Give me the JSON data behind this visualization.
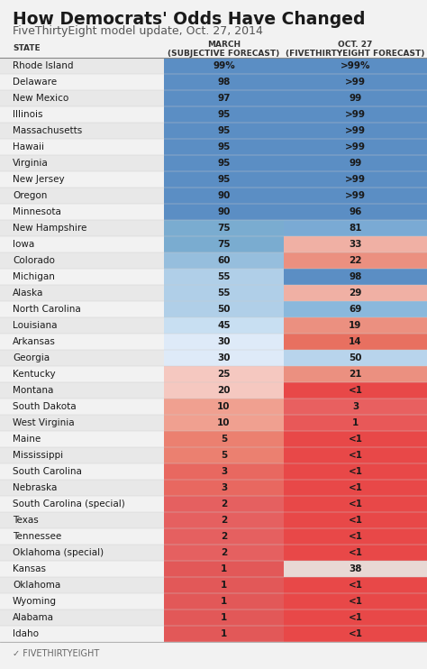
{
  "title": "How Democrats' Odds Have Changed",
  "subtitle": "FiveThirtyEight model update, Oct. 27, 2014",
  "states": [
    "Rhode Island",
    "Delaware",
    "New Mexico",
    "Illinois",
    "Massachusetts",
    "Hawaii",
    "Virginia",
    "New Jersey",
    "Oregon",
    "Minnesota",
    "New Hampshire",
    "Iowa",
    "Colorado",
    "Michigan",
    "Alaska",
    "North Carolina",
    "Louisiana",
    "Arkansas",
    "Georgia",
    "Kentucky",
    "Montana",
    "South Dakota",
    "West Virginia",
    "Maine",
    "Mississippi",
    "South Carolina",
    "Nebraska",
    "South Carolina (special)",
    "Texas",
    "Tennessee",
    "Oklahoma (special)",
    "Kansas",
    "Oklahoma",
    "Wyoming",
    "Alabama",
    "Idaho"
  ],
  "march": [
    99,
    98,
    97,
    95,
    95,
    95,
    95,
    95,
    90,
    90,
    75,
    75,
    60,
    55,
    55,
    50,
    45,
    30,
    30,
    25,
    20,
    10,
    10,
    5,
    5,
    3,
    3,
    2,
    2,
    2,
    2,
    1,
    1,
    1,
    1,
    1
  ],
  "oct": [
    99,
    99,
    99,
    99,
    99,
    99,
    99,
    99,
    99,
    96,
    81,
    33,
    22,
    98,
    29,
    69,
    19,
    14,
    50,
    21,
    0.5,
    3,
    1,
    0.5,
    0.5,
    0.5,
    0.5,
    0.5,
    0.5,
    0.5,
    0.5,
    38,
    0.5,
    0.5,
    0.5,
    0.5
  ],
  "march_labels": [
    "99%",
    "98",
    "97",
    "95",
    "95",
    "95",
    "95",
    "95",
    "90",
    "90",
    "75",
    "75",
    "60",
    "55",
    "55",
    "50",
    "45",
    "30",
    "30",
    "25",
    "20",
    "10",
    "10",
    "5",
    "5",
    "3",
    "3",
    "2",
    "2",
    "2",
    "2",
    "1",
    "1",
    "1",
    "1",
    "1"
  ],
  "oct_labels": [
    ">99%",
    ">99",
    "99",
    ">99",
    ">99",
    ">99",
    "99",
    ">99",
    ">99",
    "96",
    "81",
    "33",
    "22",
    "98",
    "29",
    "69",
    "19",
    "14",
    "50",
    "21",
    "<1",
    "3",
    "1",
    "<1",
    "<1",
    "<1",
    "<1",
    "<1",
    "<1",
    "<1",
    "<1",
    "38",
    "<1",
    "<1",
    "<1",
    "<1"
  ],
  "bg_color": "#f2f2f2",
  "table_bg": "#ffffff",
  "footer": "FIVETHIRTYEIGHT",
  "title_fontsize": 13.5,
  "subtitle_fontsize": 9,
  "header_fontsize": 6.5,
  "row_fontsize": 7.5,
  "value_fontsize": 7.5
}
